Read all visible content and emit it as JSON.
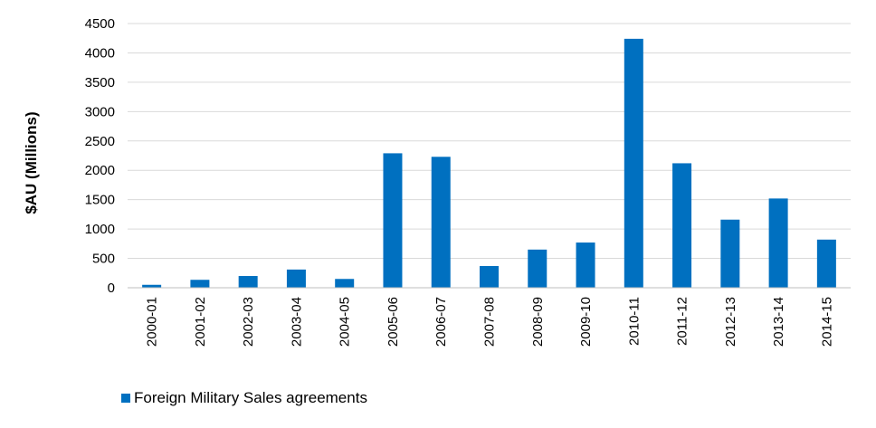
{
  "chart_data": {
    "type": "bar",
    "categories": [
      "2000-01",
      "2001-02",
      "2002-03",
      "2003-04",
      "2004-05",
      "2005-06",
      "2006-07",
      "2007-08",
      "2008-09",
      "2009-10",
      "2010-11",
      "2011-12",
      "2012-13",
      "2013-14",
      "2014-15"
    ],
    "series": [
      {
        "name": "Foreign Military Sales agreements",
        "values": [
          50,
          135,
          200,
          310,
          150,
          2290,
          2230,
          370,
          650,
          770,
          4240,
          2120,
          1160,
          1520,
          820
        ],
        "color": "#0070C0"
      }
    ],
    "ylabel": "$AU (Millions)",
    "ylim": [
      0,
      4500
    ],
    "yticks": [
      0,
      500,
      1000,
      1500,
      2000,
      2500,
      3000,
      3500,
      4000,
      4500
    ],
    "grid": true,
    "legend_position": "bottom-left"
  }
}
